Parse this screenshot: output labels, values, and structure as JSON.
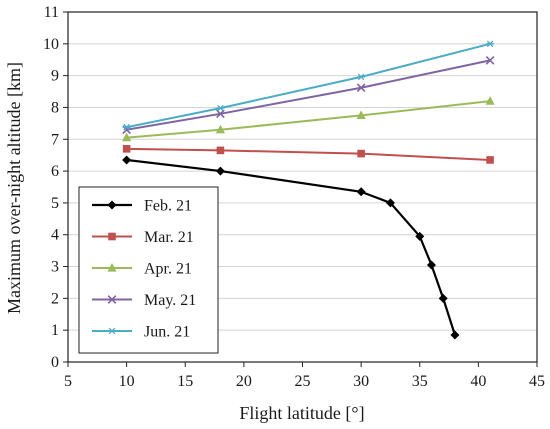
{
  "chart_data": {
    "type": "line",
    "xlabel": "Flight latitude [°]",
    "ylabel": "Maximum over-night altitude [km]",
    "xlim": [
      5,
      45
    ],
    "ylim": [
      0,
      11
    ],
    "x_ticks": [
      5,
      10,
      15,
      20,
      25,
      30,
      35,
      40,
      45
    ],
    "y_ticks": [
      0,
      1,
      2,
      3,
      4,
      5,
      6,
      7,
      8,
      9,
      10,
      11
    ],
    "grid": "horizontal",
    "legend_position": "lower-left",
    "series": [
      {
        "name": "Feb. 21",
        "color": "#000000",
        "marker": "diamond",
        "x": [
          10,
          18,
          30,
          32.5,
          35,
          36,
          37,
          38
        ],
        "y": [
          6.35,
          6.0,
          5.35,
          5.0,
          3.95,
          3.05,
          2.0,
          0.85
        ]
      },
      {
        "name": "Mar. 21",
        "color": "#c0504d",
        "marker": "square",
        "x": [
          10,
          18,
          30,
          41
        ],
        "y": [
          6.7,
          6.65,
          6.55,
          6.35
        ]
      },
      {
        "name": "Apr. 21",
        "color": "#9bbb59",
        "marker": "triangle",
        "x": [
          10,
          18,
          30,
          41
        ],
        "y": [
          7.05,
          7.3,
          7.75,
          8.2
        ]
      },
      {
        "name": "May. 21",
        "color": "#8064a2",
        "marker": "x",
        "x": [
          10,
          18,
          30,
          41
        ],
        "y": [
          7.3,
          7.8,
          8.62,
          9.48
        ]
      },
      {
        "name": "Jun. 21",
        "color": "#4bacc6",
        "marker": "star",
        "x": [
          10,
          18,
          30,
          41
        ],
        "y": [
          7.38,
          7.98,
          8.96,
          10.0
        ]
      }
    ]
  }
}
